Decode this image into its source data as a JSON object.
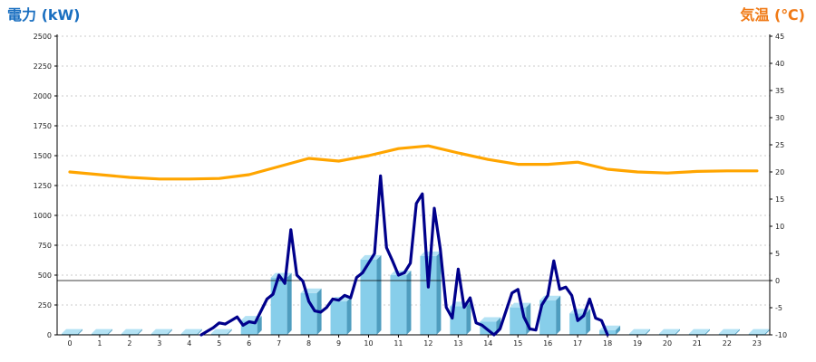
{
  "chart_data": {
    "type": "bar",
    "left_axis_title": "電力 (kW)",
    "right_axis_title": "気温 (℃)",
    "colors": {
      "left_title": "#1a6fc0",
      "right_title": "#f07a16",
      "bar_front": "#87ceea",
      "bar_side": "#4f9dbf",
      "bar_top": "#b3e2f4",
      "power_line": "#00008b",
      "temperature_line": "#ffa500",
      "grid": "#bbbbbb",
      "axis": "#000000"
    },
    "categories": [
      "0",
      "1",
      "2",
      "3",
      "4",
      "5",
      "6",
      "7",
      "8",
      "9",
      "10",
      "11",
      "12",
      "13",
      "14",
      "15",
      "16",
      "17",
      "18",
      "19",
      "20",
      "21",
      "22",
      "23"
    ],
    "ylim_left": [
      0,
      2500
    ],
    "yticks_left": [
      0,
      250,
      500,
      750,
      1000,
      1250,
      1500,
      1750,
      2000,
      2250,
      2500
    ],
    "ylim_right": [
      -10,
      45
    ],
    "yticks_right": [
      -10,
      -5,
      0,
      5,
      10,
      15,
      20,
      25,
      30,
      35,
      40,
      45
    ],
    "grid": "horizontal dashed",
    "series": [
      {
        "type": "bar",
        "values": [
          10,
          10,
          10,
          10,
          10,
          10,
          120,
          480,
          350,
          280,
          630,
          500,
          660,
          240,
          110,
          230,
          290,
          180,
          40,
          10,
          10,
          10,
          10,
          10
        ]
      },
      {
        "type": "line",
        "axis": "left",
        "x": [
          4.4,
          4.6,
          4.8,
          5.0,
          5.2,
          5.4,
          5.6,
          5.8,
          6.0,
          6.2,
          6.4,
          6.6,
          6.8,
          7.0,
          7.2,
          7.4,
          7.6,
          7.8,
          8.0,
          8.2,
          8.4,
          8.6,
          8.8,
          9.0,
          9.2,
          9.4,
          9.6,
          9.8,
          10.0,
          10.2,
          10.4,
          10.6,
          10.8,
          11.0,
          11.2,
          11.4,
          11.6,
          11.8,
          12.0,
          12.2,
          12.4,
          12.6,
          12.8,
          13.0,
          13.2,
          13.4,
          13.6,
          13.8,
          14.0,
          14.2,
          14.4,
          14.6,
          14.8,
          15.0,
          15.2,
          15.4,
          15.6,
          15.8,
          16.0,
          16.2,
          16.4,
          16.6,
          16.8,
          17.0,
          17.2,
          17.4,
          17.6,
          17.8,
          18.0
        ],
        "y": [
          0,
          30,
          60,
          100,
          90,
          120,
          150,
          80,
          110,
          100,
          200,
          300,
          340,
          500,
          430,
          880,
          500,
          450,
          280,
          200,
          190,
          230,
          300,
          290,
          330,
          310,
          480,
          520,
          600,
          680,
          1330,
          730,
          620,
          500,
          520,
          600,
          1100,
          1180,
          400,
          1060,
          720,
          230,
          140,
          550,
          230,
          310,
          100,
          80,
          40,
          0,
          50,
          200,
          350,
          380,
          150,
          50,
          40,
          250,
          330,
          620,
          380,
          400,
          330,
          120,
          160,
          300,
          140,
          120,
          0
        ]
      },
      {
        "type": "line",
        "axis": "right",
        "x": [
          0,
          1,
          2,
          3,
          4,
          5,
          6,
          7,
          8,
          9,
          10,
          11,
          12,
          13,
          14,
          15,
          16,
          17,
          18,
          19,
          20,
          21,
          22,
          23
        ],
        "y": [
          20.0,
          19.5,
          19.0,
          18.7,
          18.7,
          18.8,
          19.5,
          21.0,
          22.5,
          22.0,
          23.0,
          24.3,
          24.8,
          23.5,
          22.3,
          21.4,
          21.4,
          21.8,
          20.5,
          20.0,
          19.8,
          20.1,
          20.2,
          20.2
        ]
      }
    ]
  }
}
